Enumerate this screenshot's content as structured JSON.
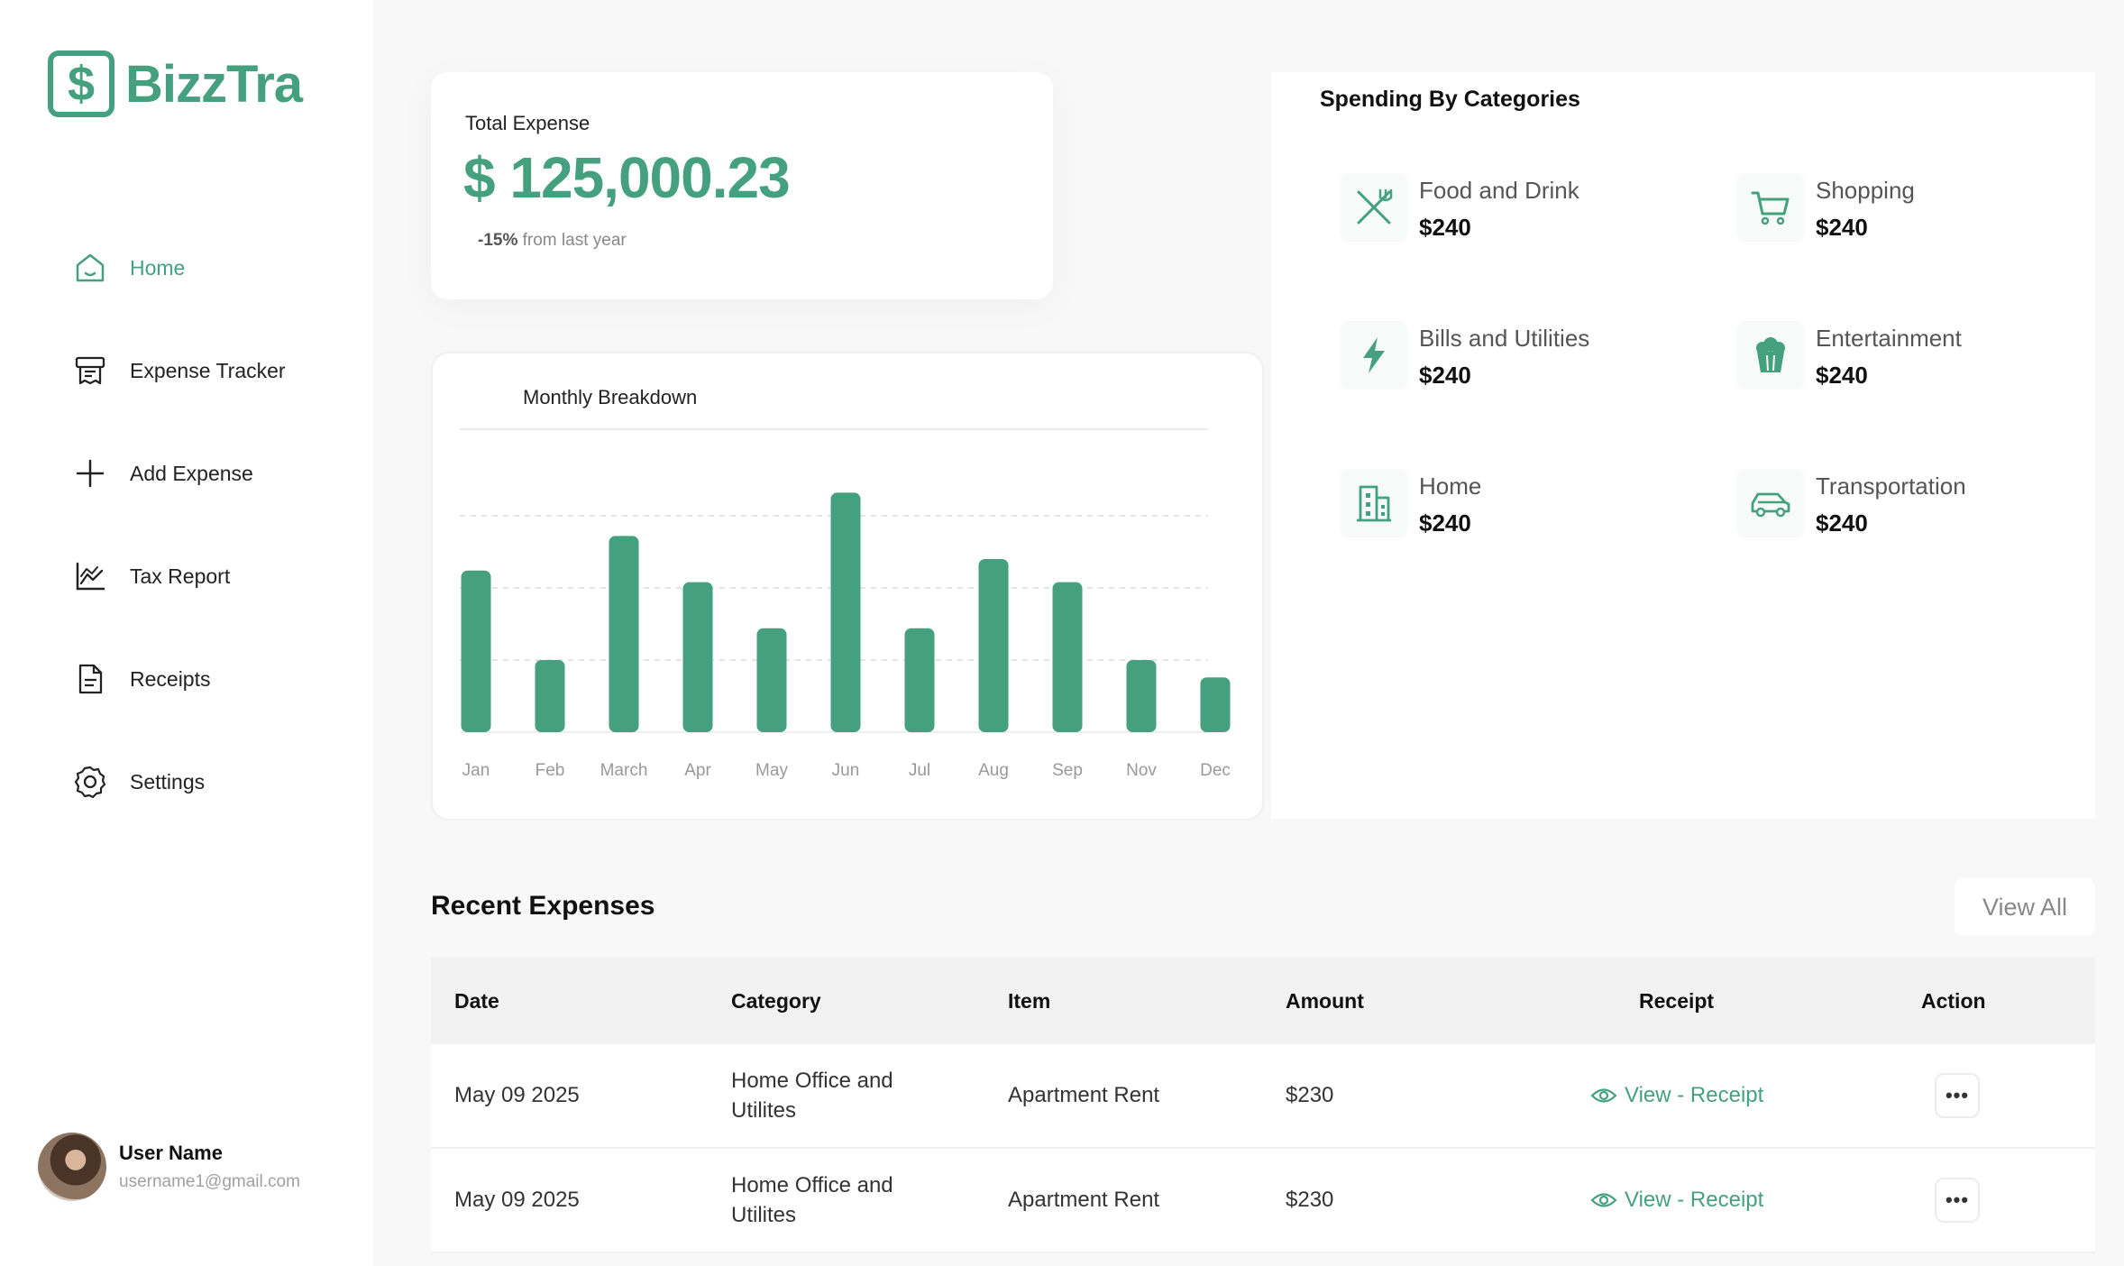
{
  "app": {
    "logo_text": "BizzTra",
    "logo_symbol": "$",
    "accent_color": "#45a080"
  },
  "sidebar": {
    "items": [
      {
        "label": "Home",
        "icon": "home-icon",
        "active": true
      },
      {
        "label": "Expense Tracker",
        "icon": "receipt-icon",
        "active": false
      },
      {
        "label": "Add Expense",
        "icon": "plus-icon",
        "active": false
      },
      {
        "label": "Tax Report",
        "icon": "line-chart-icon",
        "active": false
      },
      {
        "label": "Receipts",
        "icon": "document-icon",
        "active": false
      },
      {
        "label": "Settings",
        "icon": "gear-icon",
        "active": false
      }
    ],
    "user": {
      "name": "User Name",
      "email": "username1@gmail.com"
    }
  },
  "total": {
    "label": "Total Expense",
    "amount": "$ 125,000.23",
    "change": "-15%",
    "change_suffix": " from last year"
  },
  "chart_data": {
    "type": "bar",
    "title": "Monthly Breakdown",
    "categories": [
      "Jan",
      "Feb",
      "March",
      "Apr",
      "May",
      "Jun",
      "Jul",
      "Aug",
      "Sep",
      "Nov",
      "Dec"
    ],
    "values": [
      56,
      25,
      68,
      52,
      36,
      83,
      36,
      60,
      52,
      25,
      19
    ],
    "ylim": [
      0,
      100
    ],
    "grid": true,
    "xlabel": "",
    "ylabel": ""
  },
  "categories": {
    "title": "Spending By Categories",
    "items": [
      {
        "name": "Food and Drink",
        "value": "$240",
        "icon": "utensils-icon"
      },
      {
        "name": "Shopping",
        "value": "$240",
        "icon": "cart-icon"
      },
      {
        "name": "Bills and Utilities",
        "value": "$240",
        "icon": "bolt-icon"
      },
      {
        "name": "Entertainment",
        "value": "$240",
        "icon": "popcorn-icon"
      },
      {
        "name": "Home",
        "value": "$240",
        "icon": "building-icon"
      },
      {
        "name": "Transportation",
        "value": "$240",
        "icon": "car-icon"
      }
    ]
  },
  "recent": {
    "title": "Recent Expenses",
    "view_all": "View All",
    "columns": [
      "Date",
      "Category",
      "Item",
      "Amount",
      "Receipt",
      "Action"
    ],
    "rows": [
      {
        "date": "May 09 2025",
        "category_line1": "Home Office and",
        "category_line2": "Utilites",
        "item": "Apartment Rent",
        "amount": "$230",
        "receipt": "View - Receipt"
      },
      {
        "date": "May 09 2025",
        "category_line1": "Home Office and",
        "category_line2": "Utilites",
        "item": "Apartment Rent",
        "amount": "$230",
        "receipt": "View - Receipt"
      }
    ],
    "action_label": "•••"
  }
}
